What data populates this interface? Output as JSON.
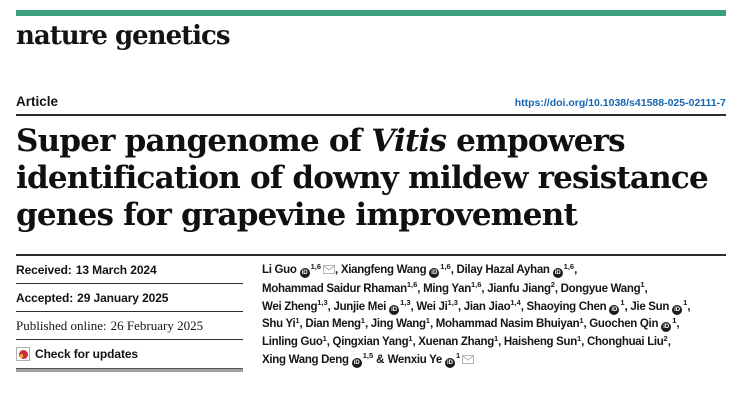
{
  "brand": "nature genetics",
  "article": {
    "label": "Article",
    "doi": "https://doi.org/10.1038/s41588-025-02111-7"
  },
  "title": {
    "line1_pre": "Super pangenome of ",
    "line1_italic": "Vitis",
    "line1_post": " empowers",
    "line2": "identification of downy mildew resistance",
    "line3": "genes for grapevine improvement"
  },
  "meta": {
    "received_label": "Received:",
    "received_value": "13 March 2024",
    "accepted_label": "Accepted:",
    "accepted_value": "29 January 2025",
    "published_label": "Published online:",
    "published_value": "26 February 2025",
    "check_updates": "Check for updates"
  },
  "icons": {
    "orcid_text": "iD",
    "orcid_name": "orcid-icon",
    "email_name": "email-icon",
    "crossmark_name": "crossmark-icon"
  },
  "colors": {
    "brand_green": "#3aa17c",
    "link_blue": "#1467b3",
    "crossmark_red": "#cc2b3d",
    "crossmark_yellow": "#f3b229",
    "rule_dark": "#2b2b2b",
    "rule_gray": "#a0a0a0"
  },
  "authors": {
    "lines": [
      [
        {
          "name": "Li Guo",
          "orcid": true,
          "sup": "1,6",
          "email": true,
          "sep": ", "
        },
        {
          "name": "Xiangfeng Wang",
          "orcid": true,
          "sup": "1,6",
          "sep": ", "
        },
        {
          "name": "Dilay Hazal Ayhan",
          "orcid": true,
          "sup": "1,6",
          "sep": ","
        }
      ],
      [
        {
          "name": "Mohammad Saidur Rhaman",
          "sup": "1,6",
          "sep": ", "
        },
        {
          "name": "Ming Yan",
          "sup": "1,6",
          "sep": ", "
        },
        {
          "name": "Jianfu Jiang",
          "sup": "2",
          "sep": ", "
        },
        {
          "name": "Dongyue Wang",
          "sup": "1",
          "sep": ","
        }
      ],
      [
        {
          "name": "Wei Zheng",
          "sup": "1,3",
          "sep": ", "
        },
        {
          "name": "Junjie Mei",
          "orcid": true,
          "sup": "1,3",
          "sep": ", "
        },
        {
          "name": "Wei Ji",
          "sup": "1,3",
          "sep": ", "
        },
        {
          "name": "Jian Jiao",
          "sup": "1,4",
          "sep": ", "
        },
        {
          "name": "Shaoying Chen",
          "orcid": true,
          "sup": "1",
          "sep": ", "
        },
        {
          "name": "Jie Sun",
          "orcid": true,
          "sup": "1",
          "sep": ","
        }
      ],
      [
        {
          "name": "Shu Yi",
          "sup": "1",
          "sep": ", "
        },
        {
          "name": "Dian Meng",
          "sup": "1",
          "sep": ", "
        },
        {
          "name": "Jing Wang",
          "sup": "1",
          "sep": ", "
        },
        {
          "name": "Mohammad Nasim Bhuiyan",
          "sup": "1",
          "sep": ", "
        },
        {
          "name": "Guochen Qin",
          "orcid": true,
          "sup": "1",
          "sep": ","
        }
      ],
      [
        {
          "name": "Linling Guo",
          "sup": "1",
          "sep": ", "
        },
        {
          "name": "Qingxian Yang",
          "sup": "1",
          "sep": ", "
        },
        {
          "name": "Xuenan Zhang",
          "sup": "1",
          "sep": ", "
        },
        {
          "name": "Haisheng Sun",
          "sup": "1",
          "sep": ", "
        },
        {
          "name": "Chonghuai Liu",
          "sup": "2",
          "sep": ","
        }
      ],
      [
        {
          "name": "Xing Wang Deng",
          "orcid": true,
          "sup": "1,5",
          "sep": " "
        },
        {
          "name": "Wenxiu Ye",
          "prefix": "& ",
          "orcid": true,
          "sup": "1",
          "email": true,
          "sep": ""
        }
      ]
    ]
  }
}
